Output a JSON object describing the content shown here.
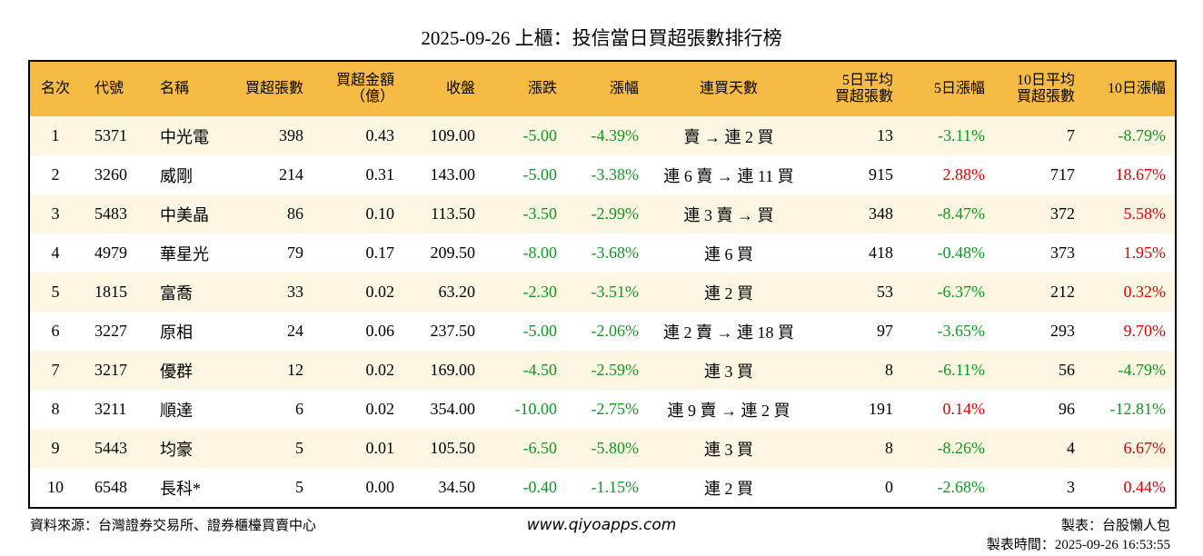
{
  "header": {
    "title": "2025-09-26 上櫃：投信當日買超張數排行榜"
  },
  "table": {
    "columns": [
      "名次",
      "代號",
      "名稱",
      "買超張數",
      "買超金額\n（億）",
      "收盤",
      "漲跌",
      "漲幅",
      "連買天數",
      "5日平均\n買超張數",
      "5日漲幅",
      "10日平均\n買超張數",
      "10日漲幅"
    ],
    "rows": [
      [
        "1",
        "5371",
        "中光電",
        "398",
        "0.43",
        "109.00",
        "-5.00",
        "-4.39%",
        "賣 → 連 2 買",
        "13",
        "-3.11%",
        "7",
        "-8.79%"
      ],
      [
        "2",
        "3260",
        "威剛",
        "214",
        "0.31",
        "143.00",
        "-5.00",
        "-3.38%",
        "連 6 賣 → 連 11 買",
        "915",
        "2.88%",
        "717",
        "18.67%"
      ],
      [
        "3",
        "5483",
        "中美晶",
        "86",
        "0.10",
        "113.50",
        "-3.50",
        "-2.99%",
        "連 3 賣 → 買",
        "348",
        "-8.47%",
        "372",
        "5.58%"
      ],
      [
        "4",
        "4979",
        "華星光",
        "79",
        "0.17",
        "209.50",
        "-8.00",
        "-3.68%",
        "連 6 買",
        "418",
        "-0.48%",
        "373",
        "1.95%"
      ],
      [
        "5",
        "1815",
        "富喬",
        "33",
        "0.02",
        "63.20",
        "-2.30",
        "-3.51%",
        "連 2 買",
        "53",
        "-6.37%",
        "212",
        "0.32%"
      ],
      [
        "6",
        "3227",
        "原相",
        "24",
        "0.06",
        "237.50",
        "-5.00",
        "-2.06%",
        "連 2 賣 → 連 18 買",
        "97",
        "-3.65%",
        "293",
        "9.70%"
      ],
      [
        "7",
        "3217",
        "優群",
        "12",
        "0.02",
        "169.00",
        "-4.50",
        "-2.59%",
        "連 3 買",
        "8",
        "-6.11%",
        "56",
        "-4.79%"
      ],
      [
        "8",
        "3211",
        "順達",
        "6",
        "0.02",
        "354.00",
        "-10.00",
        "-2.75%",
        "連 9 賣 → 連 2 買",
        "191",
        "0.14%",
        "96",
        "-12.81%"
      ],
      [
        "9",
        "5443",
        "均豪",
        "5",
        "0.01",
        "105.50",
        "-6.50",
        "-5.80%",
        "連 3 買",
        "8",
        "-8.26%",
        "4",
        "6.67%"
      ],
      [
        "10",
        "6548",
        "長科*",
        "5",
        "0.00",
        "34.50",
        "-0.40",
        "-1.15%",
        "連 2 買",
        "0",
        "-2.68%",
        "3",
        "0.44%"
      ]
    ]
  },
  "footer": {
    "source": "資料來源：台灣證券交易所、證券櫃檯買賣中心",
    "website": "www.qiyoapps.com",
    "author": "製表：台股懶人包",
    "time": "製表時間：2025-09-26 16:53:55"
  }
}
